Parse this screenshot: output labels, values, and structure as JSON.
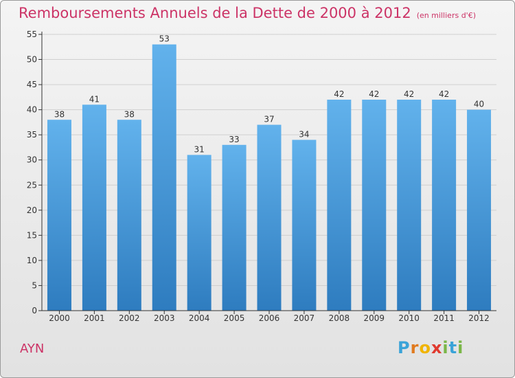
{
  "title": "Remboursements Annuels de la Dette de 2000 à 2012",
  "unit": "(en milliers d'€)",
  "commune": "AYN",
  "logo": {
    "letters": [
      "P",
      "r",
      "o",
      "x",
      "i",
      "t",
      "i"
    ],
    "colors": [
      "#3aa3d8",
      "#e07a1f",
      "#f0b400",
      "#e03a2f",
      "#7ab648",
      "#3aa3d8",
      "#7ab648"
    ]
  },
  "colors": {
    "title": "#cc3366",
    "bar_top": "#62b2ec",
    "bar_bottom": "#2e7cbf",
    "axis": "#333333",
    "grid": "#cfcfcf"
  },
  "chart_data": {
    "type": "bar",
    "title": "Remboursements Annuels de la Dette de 2000 à 2012",
    "categories": [
      "2000",
      "2001",
      "2002",
      "2003",
      "2004",
      "2005",
      "2006",
      "2007",
      "2008",
      "2009",
      "2010",
      "2011",
      "2012"
    ],
    "values": [
      38,
      41,
      38,
      53,
      31,
      33,
      37,
      34,
      42,
      42,
      42,
      42,
      40
    ],
    "data_labels": [
      "38",
      "41",
      "38",
      "53",
      "31",
      "33",
      "37",
      "34",
      "42",
      "42",
      "42",
      "42",
      "40"
    ],
    "yticks": [
      "0",
      "5",
      "10",
      "15",
      "20",
      "25",
      "30",
      "35",
      "40",
      "45",
      "50",
      "55"
    ],
    "ylim": [
      0,
      55
    ],
    "grid": true,
    "xlabel": "",
    "ylabel": ""
  }
}
